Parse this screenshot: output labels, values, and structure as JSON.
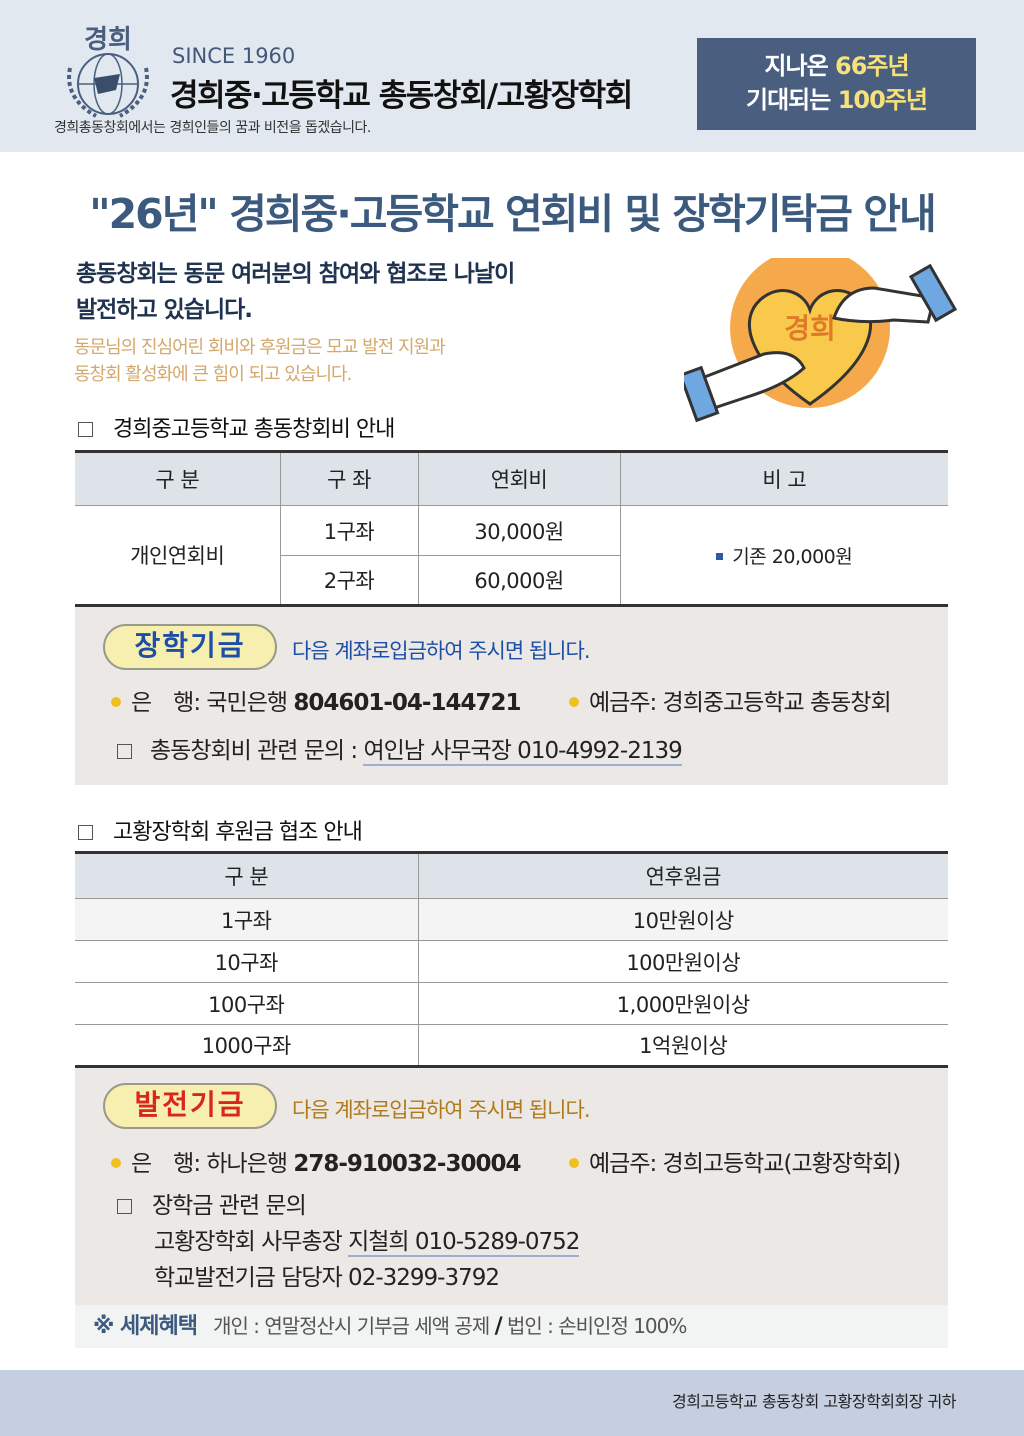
{
  "header": {
    "logo_text": "경희",
    "since": "SINCE 1960",
    "org_name": "경희중·고등학교 총동창회/고황장학회",
    "motto": "경희총동창회에서는 경희인들의 꿈과 비전을 돕겠습니다.",
    "anniversary": {
      "line1_pre": "지나온 ",
      "line1_hl": "66주년",
      "line2_pre": "기대되는 ",
      "line2_hl": "100주년"
    }
  },
  "title": "\"26년\" 경희중·고등학교 연회비 및 장학기탁금 안내",
  "intro": {
    "line1": "총동창회는 동문 여러분의 참여와 협조로 나날이",
    "line2": "발전하고 있습니다.",
    "line3": "동문님의 진심어린 회비와 후원금은 모교 발전 지원과",
    "line4": "동창회 활성화에 큰 힘이 되고 있습니다.",
    "heart_text": "경희"
  },
  "section1": {
    "heading": "경희중고등학교 총동창회비 안내",
    "headers": [
      "구 분",
      "구 좌",
      "연회비",
      "비 고"
    ],
    "category": "개인연회비",
    "rows": [
      {
        "units": "1구좌",
        "fee": "30,000원"
      },
      {
        "units": "2구좌",
        "fee": "60,000원"
      }
    ],
    "note": "기존 20,000원",
    "fund": {
      "pill": "장학기금",
      "message": "다음 계좌로입금하여 주시면 됩니다.",
      "bank_label": "은　행:",
      "bank_name": "국민은행",
      "account": "804601-04-144721",
      "holder_label": "예금주:",
      "holder": "경희중고등학교 총동창회",
      "contact_label": "총동창회비 관련 문의 :",
      "contact": "여인남 사무국장  010-4992-2139"
    }
  },
  "section2": {
    "heading": "고황장학회 후원금 협조 안내",
    "headers": [
      "구 분",
      "연후원금"
    ],
    "rows": [
      {
        "units": "1구좌",
        "amount": "10만원이상"
      },
      {
        "units": "10구좌",
        "amount": "100만원이상"
      },
      {
        "units": "100구좌",
        "amount": "1,000만원이상"
      },
      {
        "units": "1000구좌",
        "amount": "1억원이상"
      }
    ],
    "fund": {
      "pill": "발전기금",
      "message": "다음 계좌로입금하여 주시면 됩니다.",
      "bank_label": "은　행:",
      "bank_name": "하나은행",
      "account": "278-910032-30004",
      "holder_label": "예금주:",
      "holder": "경희고등학교(고황장학회)",
      "contact_heading": "장학금 관련 문의",
      "contact1_pre": "고황장학회 사무총장 ",
      "contact1": "지철희 010-5289-0752",
      "contact2": "학교발전기금 담당자 02-3299-3792"
    }
  },
  "tax": {
    "label": "※ 세제혜택",
    "personal": "개인 : 연말정산시 기부금 세액 공제",
    "sep": "/",
    "corporate": "법인 : 손비인정 100%"
  },
  "footer": "경희고등학교 총동창회 고황장학회회장 귀하",
  "colors": {
    "title": "#3b5a7e",
    "header_bg": "#e1e8ef",
    "anniv_bg": "#4a5f80",
    "highlight": "#f7e27a",
    "box_bg": "#ece8e5",
    "footer_bg": "#c5cfe0"
  }
}
